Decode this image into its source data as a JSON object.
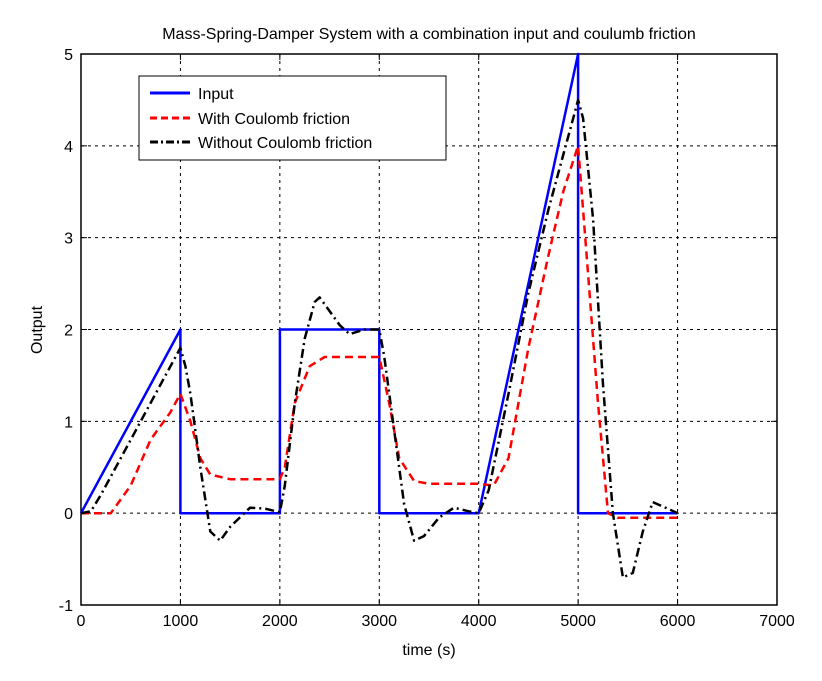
{
  "chart_data": {
    "type": "line",
    "title": "Mass-Spring-Damper System with a combination input and coulumb friction",
    "xlabel": "time (s)",
    "ylabel": "Output",
    "xlim": [
      0,
      7000
    ],
    "ylim": [
      -1,
      5
    ],
    "xticks": [
      0,
      1000,
      2000,
      3000,
      4000,
      5000,
      6000,
      7000
    ],
    "yticks": [
      -1,
      0,
      1,
      2,
      3,
      4,
      5
    ],
    "xtick_labels": [
      "0",
      "1000",
      "2000",
      "3000",
      "4000",
      "5000",
      "6000",
      "7000"
    ],
    "ytick_labels": [
      "-1",
      "0",
      "1",
      "2",
      "3",
      "4",
      "5"
    ],
    "grid": true,
    "legend_position": "top-left",
    "series": [
      {
        "name": "Input",
        "color": "#0000ff",
        "style": "solid",
        "x": [
          0,
          1000,
          1000,
          2000,
          2000,
          3000,
          3000,
          4000,
          5000,
          5000,
          6000
        ],
        "y": [
          0,
          2,
          0,
          0,
          2,
          2,
          0,
          0,
          5,
          0,
          0
        ]
      },
      {
        "name": "With Coulomb friction",
        "color": "#ff0000",
        "style": "dashed",
        "x": [
          0,
          300,
          500,
          700,
          900,
          1000,
          1100,
          1200,
          1300,
          1500,
          2000,
          2050,
          2150,
          2300,
          2450,
          2600,
          3000,
          3100,
          3200,
          3350,
          3500,
          4000,
          4150,
          4300,
          4500,
          4700,
          4850,
          5000,
          5100,
          5200,
          5300,
          5400,
          6000
        ],
        "y": [
          0,
          0,
          0.3,
          0.8,
          1.1,
          1.3,
          1.0,
          0.6,
          0.42,
          0.37,
          0.37,
          0.5,
          1.2,
          1.6,
          1.7,
          1.7,
          1.7,
          1.2,
          0.6,
          0.35,
          0.32,
          0.32,
          0.3,
          0.6,
          1.8,
          2.8,
          3.5,
          4.0,
          2.6,
          1.2,
          0.0,
          -0.05,
          -0.05
        ]
      },
      {
        "name": "Without Coulomb friction",
        "color": "#000000",
        "style": "dashdot",
        "x": [
          0,
          100,
          200,
          400,
          600,
          800,
          950,
          1000,
          1050,
          1100,
          1200,
          1300,
          1400,
          1500,
          1700,
          1850,
          2000,
          2050,
          2150,
          2250,
          2350,
          2400,
          2500,
          2600,
          2700,
          2850,
          3000,
          3050,
          3150,
          3250,
          3350,
          3450,
          3600,
          3750,
          3900,
          4000,
          4100,
          4300,
          4500,
          4700,
          4850,
          4950,
          5000,
          5050,
          5150,
          5250,
          5350,
          5450,
          5550,
          5650,
          5750,
          5900,
          6000
        ],
        "y": [
          0,
          0.02,
          0.2,
          0.6,
          1.0,
          1.4,
          1.7,
          1.8,
          1.6,
          1.3,
          0.5,
          -0.2,
          -0.3,
          -0.15,
          0.06,
          0.05,
          0.01,
          0.3,
          1.2,
          1.9,
          2.3,
          2.35,
          2.2,
          2.05,
          1.95,
          2.0,
          2.0,
          1.7,
          0.9,
          0.1,
          -0.3,
          -0.25,
          -0.05,
          0.06,
          0.02,
          0.0,
          0.25,
          1.3,
          2.4,
          3.3,
          3.9,
          4.3,
          4.5,
          4.3,
          3.2,
          1.4,
          0.0,
          -0.7,
          -0.65,
          -0.2,
          0.12,
          0.05,
          0.0
        ]
      }
    ]
  }
}
